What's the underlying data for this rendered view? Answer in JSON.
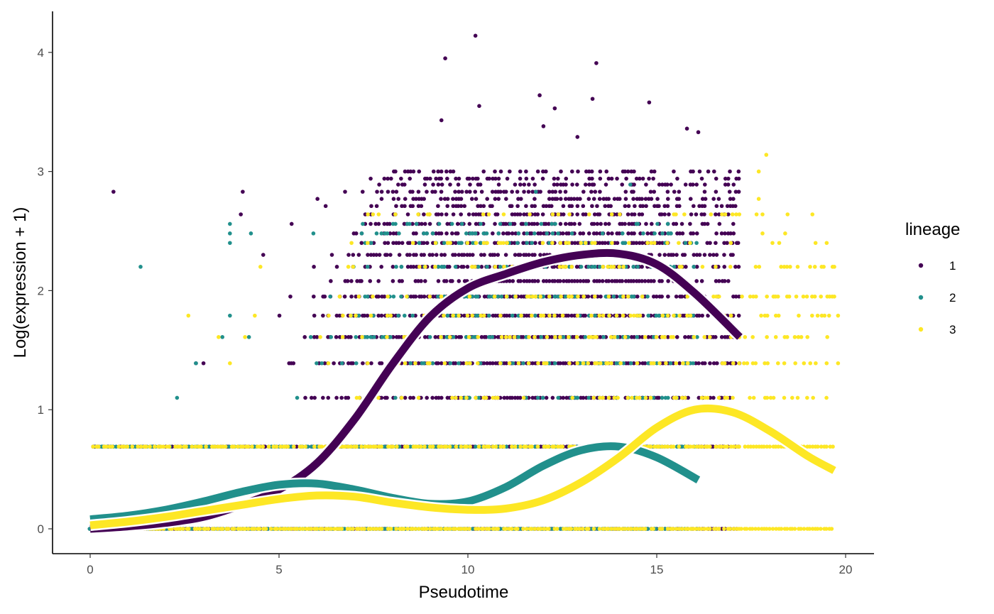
{
  "chart_data": {
    "type": "scatter",
    "title": "",
    "xlabel": "Pseudotime",
    "ylabel": "Log(expression + 1)",
    "xlim": [
      -1.0,
      20.8
    ],
    "ylim": [
      -0.2,
      4.35
    ],
    "x_ticks": [
      0,
      5,
      10,
      15,
      20
    ],
    "y_ticks": [
      0,
      1,
      2,
      3,
      4
    ],
    "x_tick_labels": [
      "0",
      "5",
      "10",
      "15",
      "20"
    ],
    "y_tick_labels": [
      "0",
      "1",
      "2",
      "3",
      "4"
    ],
    "grid": false,
    "legend": {
      "title": "lineage",
      "position": "right",
      "entries": [
        {
          "label": "1",
          "color": "#440154"
        },
        {
          "label": "2",
          "color": "#21908C"
        },
        {
          "label": "3",
          "color": "#FDE725"
        }
      ]
    },
    "series": [
      {
        "name": "1",
        "color": "#440154",
        "x_range": [
          0,
          17.2
        ],
        "expression_levels": [
          0,
          0.69,
          1.1,
          1.39,
          1.61,
          1.79,
          1.95,
          2.08,
          2.2,
          2.3,
          2.4,
          2.48,
          2.56,
          2.64,
          2.71,
          2.77,
          2.83,
          2.89,
          2.94,
          3.0
        ],
        "outliers": [
          [
            10.2,
            4.14
          ],
          [
            9.4,
            3.95
          ],
          [
            13.4,
            3.91
          ],
          [
            11.9,
            3.64
          ],
          [
            13.3,
            3.61
          ],
          [
            14.8,
            3.58
          ],
          [
            10.3,
            3.55
          ],
          [
            12.3,
            3.53
          ],
          [
            9.3,
            3.43
          ],
          [
            12.0,
            3.38
          ],
          [
            15.8,
            3.36
          ],
          [
            16.1,
            3.33
          ],
          [
            12.9,
            3.29
          ],
          [
            3.0,
            1.39
          ],
          [
            2.8,
            1.39
          ],
          [
            5.3,
            1.95
          ],
          [
            6.4,
            2.3
          ],
          [
            0.1,
            0.69
          ]
        ],
        "smooth": {
          "x": [
            0,
            1,
            2,
            3,
            4,
            5,
            6,
            7,
            8,
            9,
            10,
            11,
            12,
            13,
            14,
            15,
            16,
            17.2
          ],
          "y": [
            0.0,
            0.02,
            0.05,
            0.1,
            0.2,
            0.33,
            0.55,
            0.92,
            1.38,
            1.78,
            2.02,
            2.14,
            2.24,
            2.3,
            2.31,
            2.22,
            1.98,
            1.61
          ]
        }
      },
      {
        "name": "2",
        "color": "#21908C",
        "x_range": [
          0,
          16.1
        ],
        "expression_levels": [
          0,
          0.69,
          1.1,
          1.39,
          1.61,
          1.79,
          1.95,
          2.2,
          2.4,
          2.48,
          2.56
        ],
        "outliers": [
          [
            3.7,
            2.56
          ],
          [
            3.7,
            2.48
          ],
          [
            3.7,
            2.4
          ],
          [
            3.7,
            1.79
          ],
          [
            3.5,
            1.61
          ],
          [
            2.8,
            1.39
          ],
          [
            2.3,
            1.1
          ],
          [
            0.3,
            0.69
          ],
          [
            11.8,
            2.83
          ],
          [
            14.3,
            2.89
          ],
          [
            13.0,
            2.2
          ],
          [
            14.1,
            2.4
          ],
          [
            14.5,
            2.56
          ]
        ],
        "smooth": {
          "x": [
            0,
            1,
            2,
            3,
            4,
            5,
            6,
            7,
            8,
            9,
            10,
            11,
            12,
            13,
            14,
            15,
            16.1
          ],
          "y": [
            0.08,
            0.11,
            0.16,
            0.23,
            0.31,
            0.37,
            0.38,
            0.33,
            0.26,
            0.21,
            0.23,
            0.35,
            0.53,
            0.66,
            0.69,
            0.6,
            0.41
          ]
        }
      },
      {
        "name": "3",
        "color": "#FDE725",
        "x_range": [
          0,
          19.7
        ],
        "expression_levels": [
          0,
          0.69,
          1.1,
          1.39,
          1.61,
          1.79,
          1.95,
          2.2,
          2.4,
          2.64
        ],
        "outliers": [
          [
            2.6,
            1.79
          ],
          [
            3.4,
            1.61
          ],
          [
            4.1,
            1.61
          ],
          [
            3.7,
            1.39
          ],
          [
            17.7,
            2.77
          ],
          [
            17.7,
            3.0
          ],
          [
            17.9,
            3.14
          ],
          [
            17.8,
            2.64
          ],
          [
            17.8,
            2.48
          ],
          [
            19.7,
            2.2
          ],
          [
            19.7,
            1.95
          ],
          [
            19.8,
            1.79
          ],
          [
            19.8,
            1.39
          ],
          [
            18.4,
            2.48
          ],
          [
            18.1,
            1.95
          ]
        ],
        "smooth": {
          "x": [
            0,
            1,
            2,
            3,
            4,
            5,
            6,
            7,
            8,
            9,
            10,
            11,
            12,
            13,
            14,
            15,
            16,
            17,
            18,
            19,
            19.7
          ],
          "y": [
            0.03,
            0.06,
            0.1,
            0.15,
            0.2,
            0.25,
            0.28,
            0.27,
            0.22,
            0.18,
            0.16,
            0.17,
            0.24,
            0.39,
            0.6,
            0.85,
            1.0,
            0.98,
            0.82,
            0.61,
            0.49
          ]
        }
      }
    ]
  }
}
